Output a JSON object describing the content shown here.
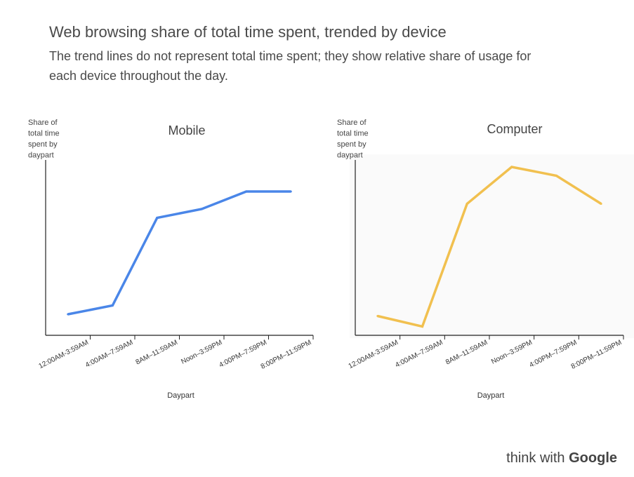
{
  "header": {
    "title": "Web browsing share of total time spent, trended by device",
    "subtitle": "The trend lines do not represent total time spent; they show relative share of usage for each device throughout the day."
  },
  "chart_data": [
    {
      "type": "line",
      "title": "Mobile",
      "ylabel": [
        "Share of",
        "total time",
        "spent by",
        "daypart"
      ],
      "xlabel": "Daypart",
      "categories": [
        "12:00AM-3:59AM",
        "4:00AM–7:59AM",
        "8AM–11:59AM",
        "Noon–3:59PM",
        "4:00PM–7:59PM",
        "8:00PM–11:59PM"
      ],
      "series": [
        {
          "values": [
            0.12,
            0.17,
            0.67,
            0.72,
            0.82,
            0.82
          ],
          "color": "#4a86e8"
        }
      ],
      "ylim": [
        0,
        1
      ],
      "background": "#ffffff",
      "grid": false
    },
    {
      "type": "line",
      "title": "Computer",
      "ylabel": [
        "Share of",
        "total time",
        "spent by",
        "daypart"
      ],
      "xlabel": "Daypart",
      "categories": [
        "12:00AM-3:59AM",
        "4:00AM–7:59AM",
        "8AM–11:59AM",
        "Noon–3:59PM",
        "4:00PM–7:59PM",
        "8:00PM–11:59PM"
      ],
      "series": [
        {
          "values": [
            0.11,
            0.05,
            0.75,
            0.96,
            0.91,
            0.75
          ],
          "color": "#f1c04f"
        }
      ],
      "ylim": [
        0,
        1
      ],
      "background": "#fafafa",
      "grid": false
    }
  ],
  "branding": {
    "prefix": "think with ",
    "brand": "Google"
  }
}
